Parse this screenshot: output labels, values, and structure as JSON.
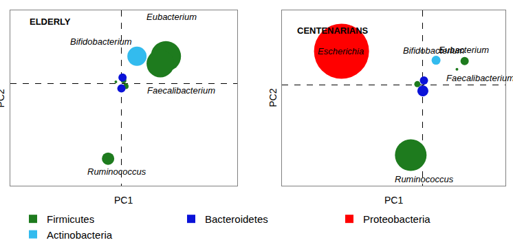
{
  "chart_data": [
    {
      "type": "bubble",
      "title": "ELDERLY",
      "x_label": "PC1",
      "y_label": "PC2",
      "xlim": [
        -1,
        1.04
      ],
      "ylim": [
        -1.4,
        1
      ],
      "xticks": [
        0
      ],
      "yticks": [
        0
      ],
      "grid": true,
      "tick_labels": false,
      "legend": "bottom",
      "series": [
        {
          "name": "Firmicutes",
          "color": "#1e7b1e",
          "x": [
            0.4,
            0.35,
            0.02,
            0.04,
            -0.05,
            -0.12
          ],
          "y": [
            0.37,
            0.27,
            0.04,
            -0.04,
            0.02,
            -1.03
          ],
          "size": [
            44,
            40,
            8,
            8,
            4,
            18
          ]
        },
        {
          "name": "Bacteroidetes",
          "color": "#0a12d8",
          "x": [
            0.01,
            0.0
          ],
          "y": [
            0.08,
            -0.07
          ],
          "size": [
            12,
            12
          ]
        },
        {
          "name": "Proteobacteria",
          "color": "#ff0000",
          "x": [],
          "y": [],
          "size": []
        },
        {
          "name": "Actinobacteria",
          "color": "#33bbee",
          "x": [
            0.14
          ],
          "y": [
            0.37
          ],
          "size": [
            28
          ]
        }
      ],
      "annotations": [
        {
          "text": "Bifidobacterium",
          "x": -0.18,
          "y": 0.57
        },
        {
          "text": "Eubacterium",
          "x": 0.45,
          "y": 0.91
        },
        {
          "text": "Faecalibacterium",
          "x": 0.54,
          "y": -0.1
        },
        {
          "text": "Ruminococcus",
          "x": -0.04,
          "y": -1.21
        }
      ]
    },
    {
      "type": "bubble",
      "title": "CENTENARIANS",
      "x_label": "PC1",
      "y_label": "PC2",
      "xlim": [
        -1.28,
        0.75
      ],
      "ylim": [
        -1.35,
        1
      ],
      "xticks": [
        0
      ],
      "yticks": [
        0
      ],
      "grid": true,
      "tick_labels": false,
      "legend": "bottom",
      "series": [
        {
          "name": "Firmicutes",
          "color": "#1e7b1e",
          "x": [
            0.38,
            0.31,
            -0.05,
            -0.11
          ],
          "y": [
            0.32,
            0.21,
            0.01,
            -0.94
          ],
          "size": [
            12,
            4,
            9,
            46
          ]
        },
        {
          "name": "Bacteroidetes",
          "color": "#0a12d8",
          "x": [
            0.01,
            0.0
          ],
          "y": [
            0.06,
            -0.08
          ],
          "size": [
            12,
            16
          ]
        },
        {
          "name": "Proteobacteria",
          "color": "#ff0000",
          "x": [
            -0.74
          ],
          "y": [
            0.45
          ],
          "size": [
            80
          ]
        },
        {
          "name": "Actinobacteria",
          "color": "#33bbee",
          "x": [
            0.12
          ],
          "y": [
            0.33
          ],
          "size": [
            13
          ]
        }
      ],
      "annotations": [
        {
          "text": "Escherichia",
          "x": -0.75,
          "y": 0.45
        },
        {
          "text": "Bifidobacterium",
          "x": 0.1,
          "y": 0.46
        },
        {
          "text": "Eubacterium",
          "x": 0.37,
          "y": 0.47
        },
        {
          "text": "Faecalibacterium",
          "x": 0.52,
          "y": 0.09
        },
        {
          "text": "Ruminococcus",
          "x": 0.01,
          "y": -1.26
        }
      ]
    }
  ]
}
